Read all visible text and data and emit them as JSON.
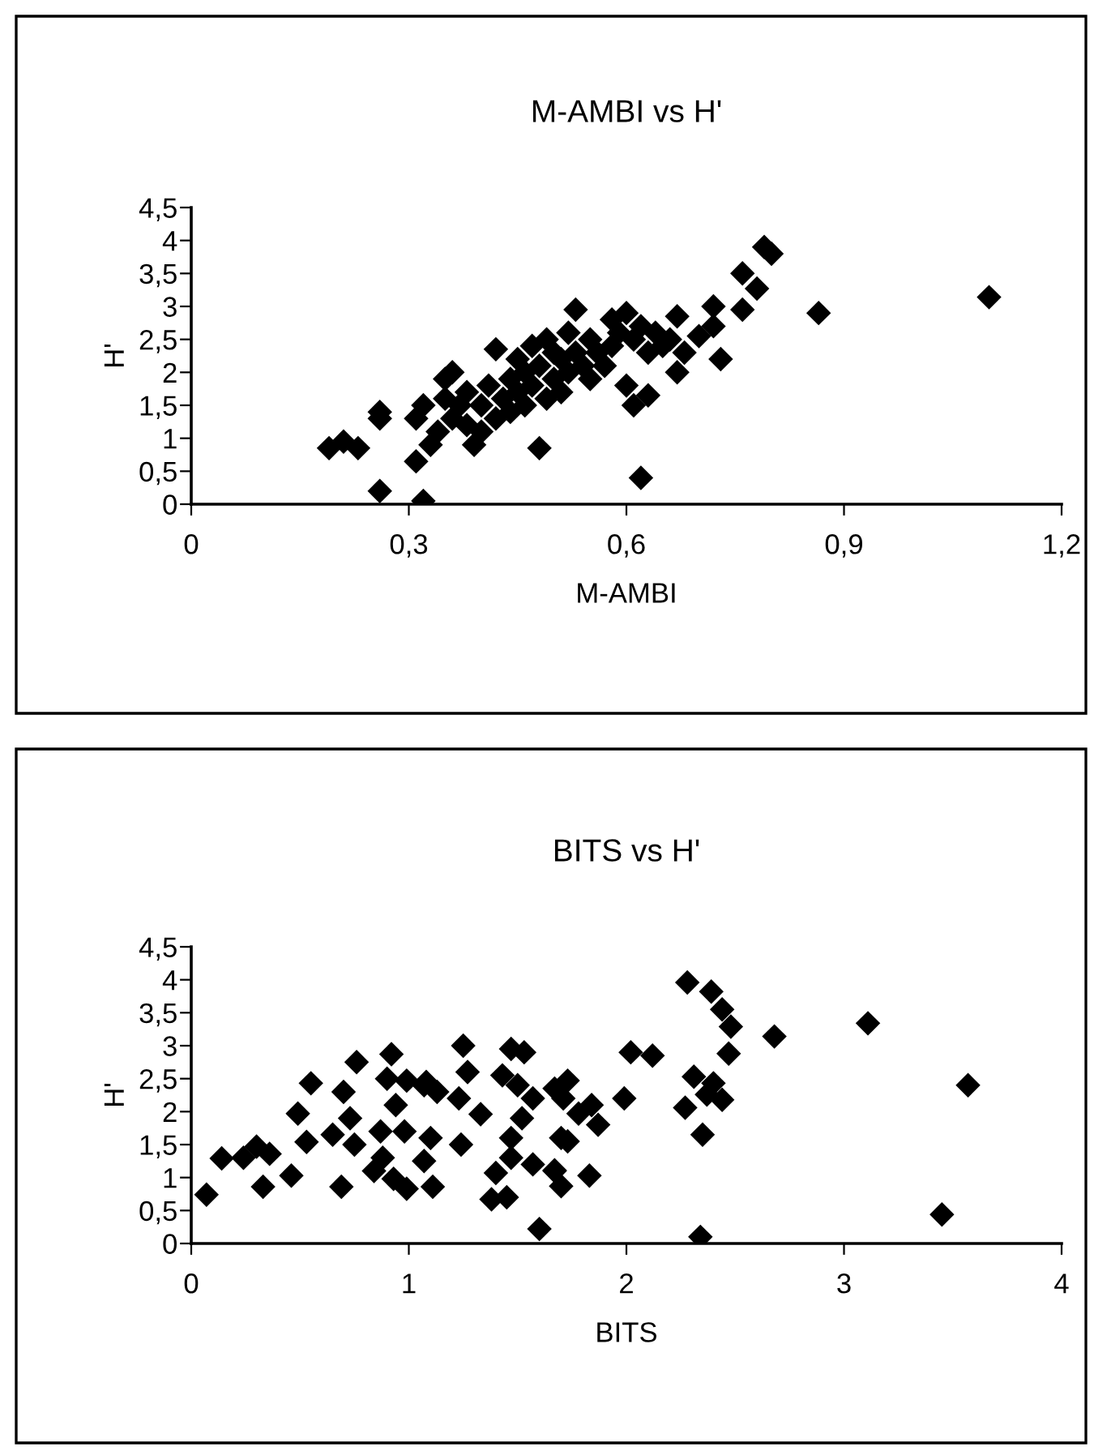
{
  "chart_data": [
    {
      "type": "scatter",
      "title": "M-AMBI vs H'",
      "xlabel": "M-AMBI",
      "ylabel": "H'",
      "marker": "diamond",
      "grid": false,
      "legend": false,
      "xlim": [
        0,
        1.2
      ],
      "xticks": [
        0,
        {
          "value": 0.3,
          "label": "0,3"
        },
        {
          "value": 0.6,
          "label": "0,6"
        },
        {
          "value": 0.9,
          "label": "0,9"
        },
        {
          "value": 1.2,
          "label": "1,2"
        }
      ],
      "ylim": [
        0,
        4.5
      ],
      "yticks": [
        0,
        {
          "value": 0.5,
          "label": "0,5"
        },
        1,
        {
          "value": 1.5,
          "label": "1,5"
        },
        2,
        {
          "value": 2.5,
          "label": "2,5"
        },
        3,
        {
          "value": 3.5,
          "label": "3,5"
        },
        4,
        {
          "value": 4.5,
          "label": "4,5"
        }
      ],
      "series": [
        {
          "color": "#000000",
          "x": [
            0.19,
            0.21,
            0.23,
            0.26,
            0.26,
            0.26,
            0.31,
            0.32,
            0.31,
            0.32,
            0.33,
            0.34,
            0.35,
            0.35,
            0.36,
            0.36,
            0.37,
            0.38,
            0.38,
            0.39,
            0.4,
            0.4,
            0.41,
            0.42,
            0.42,
            0.43,
            0.44,
            0.44,
            0.45,
            0.45,
            0.46,
            0.46,
            0.47,
            0.47,
            0.48,
            0.48,
            0.49,
            0.49,
            0.5,
            0.5,
            0.51,
            0.51,
            0.52,
            0.52,
            0.53,
            0.53,
            0.54,
            0.55,
            0.55,
            0.56,
            0.57,
            0.58,
            0.58,
            0.59,
            0.6,
            0.6,
            0.61,
            0.61,
            0.62,
            0.62,
            0.63,
            0.63,
            0.64,
            0.65,
            0.66,
            0.67,
            0.67,
            0.68,
            0.7,
            0.72,
            0.72,
            0.73,
            0.76,
            0.76,
            0.78,
            0.79,
            0.8,
            0.865,
            1.1
          ],
          "values": [
            0.85,
            0.95,
            0.85,
            1.3,
            1.4,
            0.2,
            0.65,
            0.05,
            1.3,
            1.5,
            0.9,
            1.1,
            1.6,
            1.9,
            1.3,
            2.0,
            1.5,
            1.2,
            1.7,
            0.9,
            1.5,
            1.1,
            1.8,
            1.3,
            2.35,
            1.6,
            1.9,
            1.4,
            2.2,
            1.7,
            2.0,
            1.5,
            2.4,
            1.8,
            0.85,
            2.1,
            2.5,
            1.6,
            2.3,
            1.9,
            2.2,
            1.7,
            2.6,
            2.0,
            2.95,
            2.3,
            2.1,
            2.5,
            1.9,
            2.3,
            2.1,
            2.4,
            2.8,
            2.6,
            2.9,
            1.8,
            2.5,
            1.5,
            0.4,
            2.7,
            2.3,
            1.65,
            2.6,
            2.4,
            2.5,
            2.0,
            2.85,
            2.3,
            2.55,
            3.0,
            2.7,
            2.2,
            2.95,
            3.5,
            3.27,
            3.9,
            3.8,
            2.9,
            3.14
          ]
        }
      ]
    },
    {
      "type": "scatter",
      "title": "BITS vs H'",
      "xlabel": "BITS",
      "ylabel": "H'",
      "marker": "diamond",
      "grid": false,
      "legend": false,
      "xlim": [
        0,
        4
      ],
      "xticks": [
        0,
        1,
        2,
        3,
        4
      ],
      "ylim": [
        0,
        4.5
      ],
      "yticks": [
        0,
        {
          "value": 0.5,
          "label": "0,5"
        },
        1,
        {
          "value": 1.5,
          "label": "1,5"
        },
        2,
        {
          "value": 2.5,
          "label": "2,5"
        },
        3,
        {
          "value": 3.5,
          "label": "3,5"
        },
        4,
        {
          "value": 4.5,
          "label": "4,5"
        }
      ],
      "series": [
        {
          "color": "#000000",
          "x": [
            0.07,
            0.14,
            0.24,
            0.3,
            0.36,
            0.33,
            0.46,
            0.49,
            0.53,
            0.55,
            0.65,
            0.7,
            0.69,
            0.76,
            0.73,
            0.75,
            0.84,
            0.87,
            0.88,
            0.92,
            0.9,
            0.94,
            0.93,
            0.99,
            0.99,
            0.98,
            1.07,
            1.07,
            1.11,
            1.1,
            1.13,
            1.08,
            1.23,
            1.25,
            1.24,
            1.27,
            1.33,
            1.38,
            1.4,
            1.45,
            1.43,
            1.47,
            1.53,
            1.5,
            1.47,
            1.47,
            1.52,
            1.57,
            1.6,
            1.57,
            1.67,
            1.67,
            1.7,
            1.73,
            1.71,
            1.78,
            1.84,
            1.87,
            1.73,
            1.67,
            1.7,
            1.83,
            1.99,
            2.02,
            2.12,
            2.28,
            2.39,
            2.44,
            2.48,
            2.47,
            2.68,
            3.11,
            2.31,
            2.4,
            2.37,
            2.44,
            2.27,
            2.35,
            2.34,
            3.45,
            3.57
          ],
          "values": [
            0.74,
            1.29,
            1.3,
            1.47,
            1.36,
            0.86,
            1.03,
            1.97,
            1.54,
            2.43,
            1.65,
            2.3,
            0.86,
            2.75,
            1.9,
            1.5,
            1.1,
            1.7,
            1.3,
            2.87,
            2.5,
            2.1,
            0.98,
            2.47,
            0.83,
            1.7,
            2.4,
            1.25,
            0.86,
            1.6,
            2.3,
            2.45,
            2.2,
            3.0,
            1.5,
            2.6,
            1.96,
            0.67,
            1.07,
            0.7,
            2.55,
            2.95,
            2.9,
            2.4,
            1.6,
            1.3,
            1.9,
            1.2,
            0.22,
            2.2,
            2.35,
            1.1,
            1.6,
            2.47,
            2.2,
            1.97,
            2.1,
            1.8,
            1.55,
            1.11,
            0.87,
            1.03,
            2.2,
            2.9,
            2.85,
            3.96,
            3.82,
            3.55,
            3.29,
            2.88,
            3.14,
            3.34,
            2.53,
            2.43,
            2.26,
            2.18,
            2.06,
            1.65,
            0.1,
            0.44,
            2.4
          ]
        }
      ]
    }
  ]
}
